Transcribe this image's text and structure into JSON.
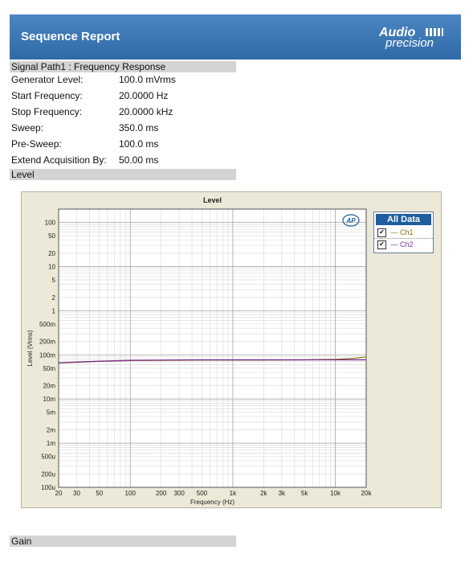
{
  "header": {
    "title": "Sequence Report",
    "logo_top": "Audio",
    "logo_bottom": "precision"
  },
  "signal_path": {
    "title": "Signal Path1 : Frequency Response",
    "params": [
      {
        "label": "Generator Level:",
        "value": "100.0 mVrms"
      },
      {
        "label": "Start Frequency:",
        "value": "20.0000 Hz"
      },
      {
        "label": "Stop Frequency:",
        "value": "20.0000 kHz"
      },
      {
        "label": "Sweep:",
        "value": "350.0 ms"
      },
      {
        "label": "Pre-Sweep:",
        "value": "100.0 ms"
      },
      {
        "label": "Extend Acquisition By:",
        "value": "50.00 ms"
      }
    ]
  },
  "sections": {
    "level": "Level",
    "gain": "Gain"
  },
  "legend": {
    "title": "All Data",
    "items": [
      {
        "label": "Ch1",
        "color": "#8a6d00",
        "checked": true
      },
      {
        "label": "Ch2",
        "color": "#7a2a9a",
        "checked": true
      }
    ]
  },
  "chart_data": {
    "type": "line",
    "title": "Level",
    "xlabel": "Frequency (Hz)",
    "ylabel": "Level (Vrms)",
    "x_scale": "log",
    "y_scale": "log",
    "xlim": [
      20,
      20000
    ],
    "ylim": [
      0.0001,
      200
    ],
    "grid": true,
    "legend_position": "right",
    "x_ticks": [
      {
        "v": 20,
        "label": "20"
      },
      {
        "v": 30,
        "label": "30"
      },
      {
        "v": 50,
        "label": "50"
      },
      {
        "v": 100,
        "label": "100"
      },
      {
        "v": 200,
        "label": "200"
      },
      {
        "v": 300,
        "label": "300"
      },
      {
        "v": 500,
        "label": "500"
      },
      {
        "v": 1000,
        "label": "1k"
      },
      {
        "v": 2000,
        "label": "2k"
      },
      {
        "v": 3000,
        "label": "3k"
      },
      {
        "v": 5000,
        "label": "5k"
      },
      {
        "v": 10000,
        "label": "10k"
      },
      {
        "v": 20000,
        "label": "20k"
      }
    ],
    "y_ticks": [
      {
        "v": 100,
        "label": "100"
      },
      {
        "v": 50,
        "label": "50"
      },
      {
        "v": 20,
        "label": "20"
      },
      {
        "v": 10,
        "label": "10"
      },
      {
        "v": 5,
        "label": "5"
      },
      {
        "v": 2,
        "label": "2"
      },
      {
        "v": 1,
        "label": "1"
      },
      {
        "v": 0.5,
        "label": "500m"
      },
      {
        "v": 0.2,
        "label": "200m"
      },
      {
        "v": 0.1,
        "label": "100m"
      },
      {
        "v": 0.05,
        "label": "50m"
      },
      {
        "v": 0.02,
        "label": "20m"
      },
      {
        "v": 0.01,
        "label": "10m"
      },
      {
        "v": 0.005,
        "label": "5m"
      },
      {
        "v": 0.002,
        "label": "2m"
      },
      {
        "v": 0.001,
        "label": "1m"
      },
      {
        "v": 0.0005,
        "label": "500u"
      },
      {
        "v": 0.0002,
        "label": "200u"
      },
      {
        "v": 0.0001,
        "label": "100u"
      }
    ],
    "series": [
      {
        "name": "Ch1",
        "color": "#8a6d00",
        "x": [
          20,
          30,
          50,
          100,
          200,
          500,
          1000,
          2000,
          5000,
          10000,
          15000,
          20000
        ],
        "y": [
          0.065,
          0.068,
          0.071,
          0.074,
          0.075,
          0.076,
          0.076,
          0.076,
          0.077,
          0.079,
          0.083,
          0.09
        ]
      },
      {
        "name": "Ch2",
        "color": "#7a2a9a",
        "x": [
          20,
          30,
          50,
          100,
          200,
          500,
          1000,
          2000,
          5000,
          10000,
          15000,
          20000
        ],
        "y": [
          0.066,
          0.069,
          0.072,
          0.075,
          0.076,
          0.077,
          0.077,
          0.077,
          0.077,
          0.077,
          0.077,
          0.077
        ]
      }
    ]
  }
}
